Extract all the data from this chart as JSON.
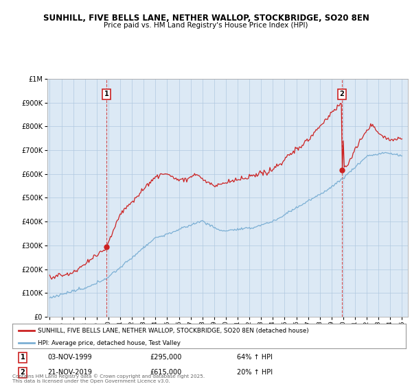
{
  "title1": "SUNHILL, FIVE BELLS LANE, NETHER WALLOP, STOCKBRIDGE, SO20 8EN",
  "title2": "Price paid vs. HM Land Registry's House Price Index (HPI)",
  "sale1_date": "03-NOV-1999",
  "sale1_price": 295000,
  "sale1_label": "1",
  "sale1_pct": "64% ↑ HPI",
  "sale2_date": "21-NOV-2019",
  "sale2_price": 615000,
  "sale2_label": "2",
  "sale2_pct": "20% ↑ HPI",
  "legend1": "SUNHILL, FIVE BELLS LANE, NETHER WALLOP, STOCKBRIDGE, SO20 8EN (detached house)",
  "legend2": "HPI: Average price, detached house, Test Valley",
  "footer": "Contains HM Land Registry data © Crown copyright and database right 2025.\nThis data is licensed under the Open Government Licence v3.0.",
  "hpi_color": "#7bafd4",
  "price_color": "#cc2222",
  "bg_color": "#ffffff",
  "plot_bg": "#dce9f5",
  "grid_color": "#b0c8e0",
  "ylim_max": 1000000,
  "ylim_min": 0,
  "sale1_x": 1999.84,
  "sale2_x": 2019.89
}
